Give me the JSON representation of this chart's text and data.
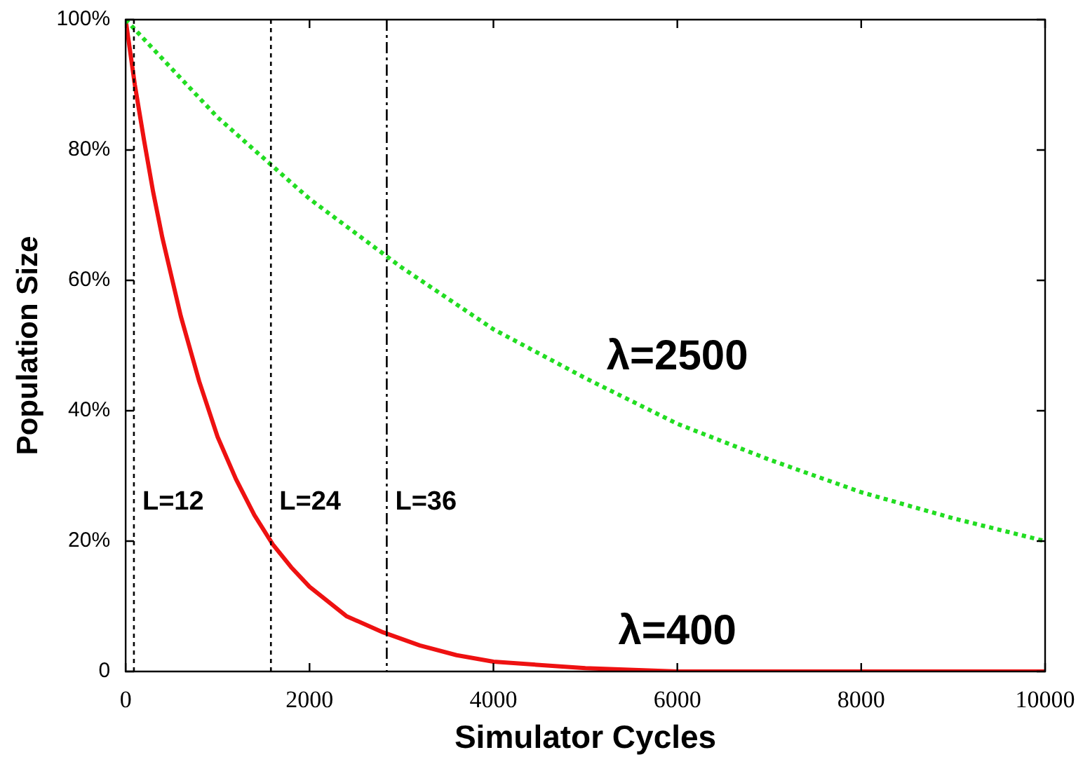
{
  "chart_data": {
    "type": "line",
    "xlabel": "Simulator Cycles",
    "ylabel": "Population Size",
    "xlim": [
      0,
      10000
    ],
    "xticks": [
      0,
      2000,
      4000,
      6000,
      8000,
      10000
    ],
    "ylim": [
      0,
      100
    ],
    "yticks": [
      {
        "value": 0,
        "label": "0"
      },
      {
        "value": 20,
        "label": "20%"
      },
      {
        "value": 40,
        "label": "40%"
      },
      {
        "value": 60,
        "label": "60%"
      },
      {
        "value": 80,
        "label": "80%"
      },
      {
        "value": 100,
        "label": "100%"
      }
    ],
    "grid": false,
    "legend": false,
    "marker": "none",
    "series": [
      {
        "name": "λ=2500",
        "color": "#22dd22",
        "line_style": "dotted",
        "x": [
          0,
          1000,
          2000,
          3000,
          4000,
          5000,
          6000,
          7000,
          8000,
          9000,
          10000
        ],
        "values": [
          100,
          85,
          72.5,
          62,
          52.5,
          45,
          38,
          32.5,
          27.5,
          23.5,
          20
        ]
      },
      {
        "name": "λ=400",
        "color": "#ee1111",
        "line_style": "solid",
        "x": [
          0,
          100,
          200,
          300,
          400,
          600,
          800,
          1000,
          1200,
          1400,
          1600,
          1800,
          2000,
          2400,
          2800,
          3200,
          3600,
          4000,
          5000,
          6000,
          7000,
          8000,
          10000
        ],
        "values": [
          100,
          90,
          81.5,
          73.5,
          66.5,
          54.5,
          44.5,
          36,
          29.5,
          24,
          19.5,
          16,
          13,
          8.5,
          6,
          4,
          2.5,
          1.5,
          0.5,
          0,
          0,
          0,
          0
        ]
      }
    ],
    "ref_lines": [
      {
        "axis": "x",
        "value": 90,
        "line_style": "dotted",
        "color": "#000000"
      },
      {
        "axis": "x",
        "value": 1580,
        "line_style": "dotted",
        "color": "#000000"
      },
      {
        "axis": "x",
        "value": 2840,
        "line_style": "dashdot",
        "color": "#000000"
      }
    ],
    "annotations": [
      {
        "text": "L=12",
        "x": 90,
        "y": 26
      },
      {
        "text": "L=24",
        "x": 1580,
        "y": 26
      },
      {
        "text": "L=36",
        "x": 2840,
        "y": 26
      }
    ]
  }
}
